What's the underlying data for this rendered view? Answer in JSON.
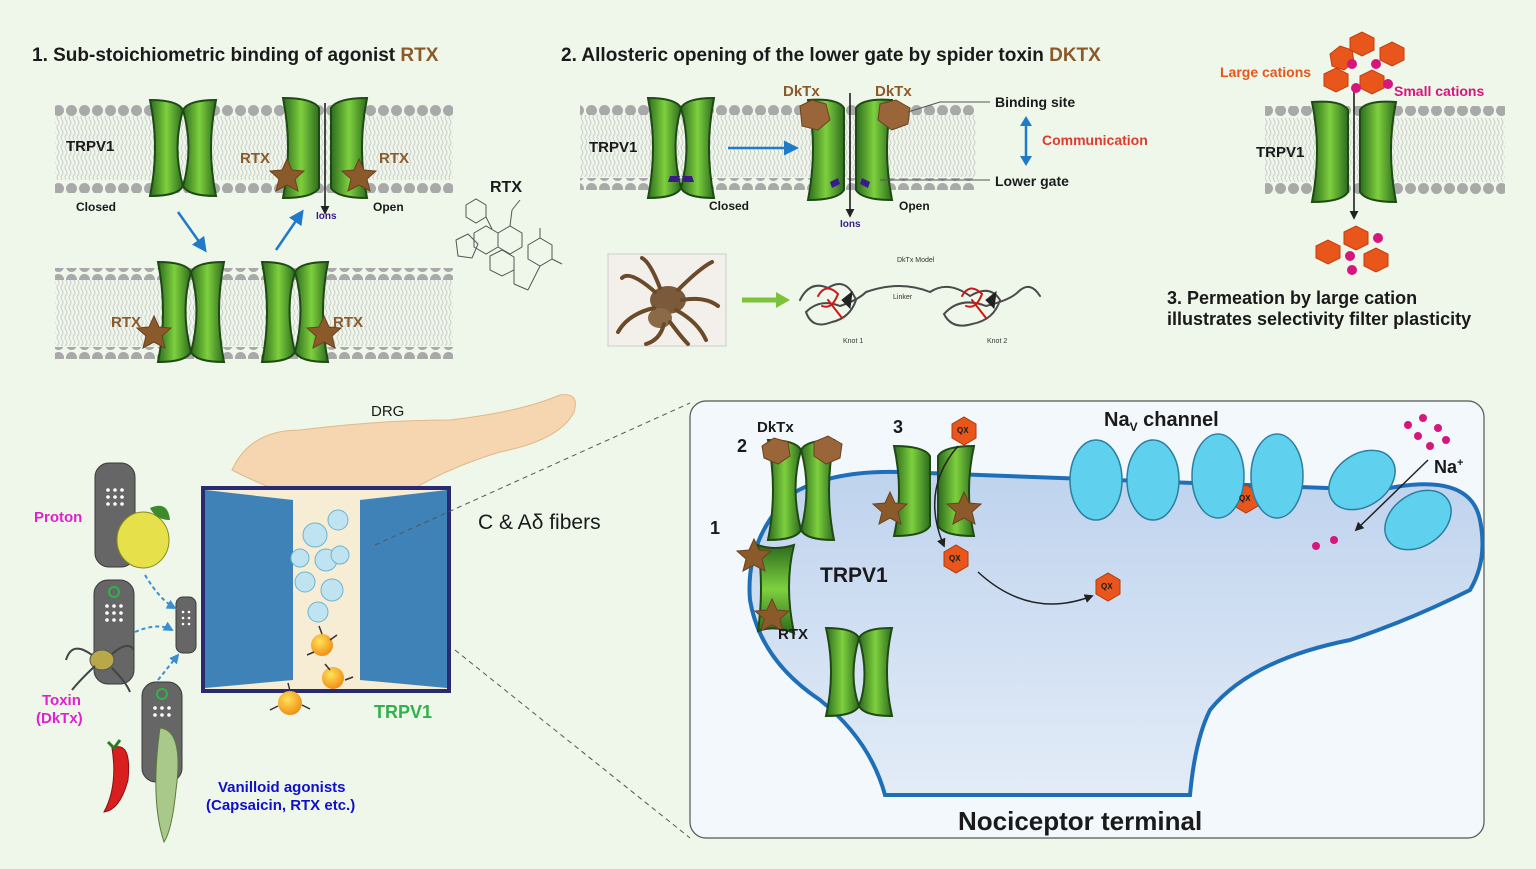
{
  "panel1": {
    "title_prefix": "1. Sub-stoichiometric binding of agonist ",
    "title_highlight": "RTX",
    "trpv1": "TRPV1",
    "closed": "Closed",
    "open": "Open",
    "ions": "Ions",
    "rtx": "RTX",
    "rtx_structure_label": "RTX"
  },
  "panel2": {
    "title_prefix": "2. Allosteric opening of the lower gate by spider toxin ",
    "title_highlight": "DKTX",
    "trpv1": "TRPV1",
    "closed": "Closed",
    "open": "Open",
    "ions": "Ions",
    "dktx": "DkTx",
    "binding_site": "Binding site",
    "communication": "Communication",
    "lower_gate": "Lower gate",
    "model_title": "DkTx Model",
    "linker": "Linker",
    "knot1": "Knot 1",
    "knot2": "Knot 2"
  },
  "panel3": {
    "large_cations": "Large cations",
    "small_cations": "Small cations",
    "trpv1": "TRPV1",
    "caption_line1": "3. Permeation by large cation",
    "caption_line2": "illustrates selectivity filter plasticity"
  },
  "lower_left": {
    "drg": "DRG",
    "fibers": "C & Aδ fibers",
    "proton": "Proton",
    "toxin_line1": "Toxin",
    "toxin_line2": "(DkTx)",
    "vanilloid_line1": "Vanilloid agonists",
    "vanilloid_line2": "(Capsaicin, RTX etc.)",
    "trpv1": "TRPV1"
  },
  "terminal": {
    "num1": "1",
    "num2": "2",
    "num3": "3",
    "dktx": "DkTx",
    "rtx": "RTX",
    "trpv1": "TRPV1",
    "nav_prefix": "Na",
    "nav_sub": "V",
    "nav_suffix": " channel",
    "na_ion": "Na",
    "na_sup": "+",
    "qx": "QX",
    "title": "Nociceptor terminal"
  },
  "colors": {
    "highlight_brown": "#8b5a2b",
    "channel_green": "#3f8f2c",
    "arrow_blue": "#1f7ac8",
    "cation_orange": "#e8561b",
    "cation_magenta": "#d6157d",
    "communication_red": "#e03a2f",
    "proton_magenta": "#e020d0",
    "trpv1_green": "#2fb24a",
    "vanilloid_blue": "#1010c8",
    "nav_cyan": "#5fd0ee"
  }
}
